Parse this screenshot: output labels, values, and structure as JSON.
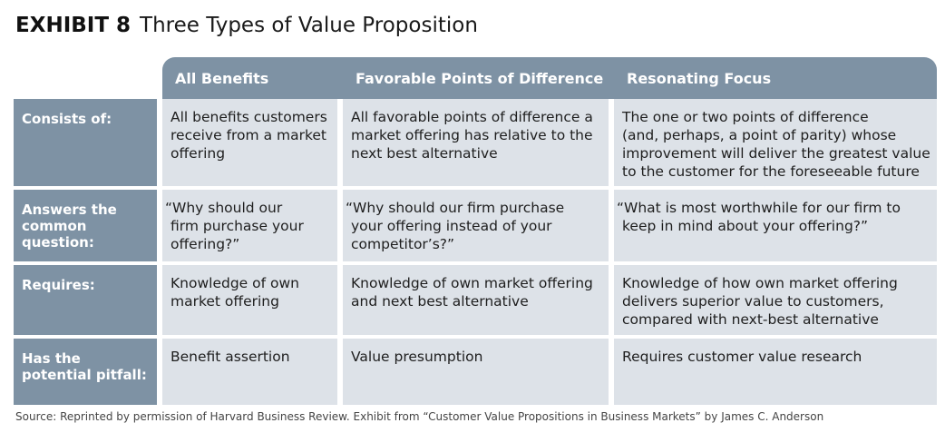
{
  "exhibit": {
    "label": "EXHIBIT 8",
    "title": "Three Types of Value Proposition"
  },
  "columns": [
    "All Benefits",
    "Favorable Points of Difference",
    "Resonating Focus"
  ],
  "rows": [
    {
      "label": [
        "Consists of:"
      ],
      "cells": [
        [
          "All benefits customers",
          "receive from a market",
          "offering"
        ],
        [
          "All favorable points of difference a",
          "market offering has relative to the",
          "next best alternative"
        ],
        [
          "The one or two points of difference",
          "(and, perhaps, a point of parity) whose",
          "improvement will deliver the greatest value",
          "to the customer for the foreseeable future"
        ]
      ]
    },
    {
      "label": [
        "Answers the",
        "common question:"
      ],
      "cells": [
        [
          "“Why should our",
          "firm purchase your",
          "offering?”"
        ],
        [
          "“Why should our firm purchase",
          "your offering instead of your",
          "competitor’s?”"
        ],
        [
          "“What is most worthwhile for our firm to",
          "keep in mind about your offering?”"
        ]
      ]
    },
    {
      "label": [
        "Requires:"
      ],
      "cells": [
        [
          "Knowledge of own",
          "market offering"
        ],
        [
          "Knowledge of own market offering",
          "and next best alternative"
        ],
        [
          "Knowledge of how own market offering",
          "delivers superior value to customers,",
          "compared with next-best alternative"
        ]
      ]
    },
    {
      "label": [
        "Has the",
        "potential pitfall:"
      ],
      "cells": [
        [
          "Benefit assertion"
        ],
        [
          "Value presumption"
        ],
        [
          "Requires customer value research"
        ]
      ]
    }
  ],
  "source_note": "Source: Reprinted by permission of Harvard Business Review. Exhibit from “Customer Value Propositions in Business Markets” by James C. Anderson"
}
